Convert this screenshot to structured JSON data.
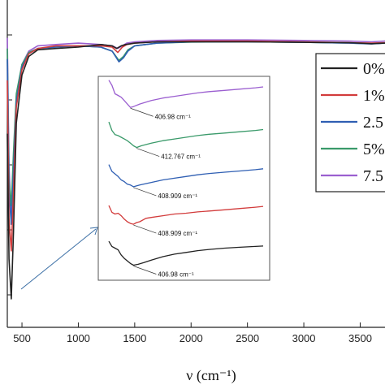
{
  "chart_data": {
    "type": "line",
    "xlabel": "ν (cm⁻¹)",
    "ylabel": "",
    "xlim": [
      370,
      3720
    ],
    "ylim": [
      0,
      100
    ],
    "x_ticks": [
      "500",
      "1000",
      "1500",
      "2000",
      "2500",
      "3000",
      "3500"
    ],
    "legend_position": "right",
    "grid": false,
    "series": [
      {
        "name": "0%",
        "color": "#222222",
        "x": [
          370,
          385,
          405,
          425,
          450,
          500,
          560,
          640,
          800,
          1000,
          1200,
          1300,
          1340,
          1380,
          1420,
          1500,
          1700,
          2000,
          2500,
          3000,
          3400,
          3600,
          3720
        ],
        "y": [
          62,
          15,
          0,
          25,
          66,
          84,
          91,
          93.5,
          94,
          94.5,
          95.5,
          95,
          94,
          95,
          95.5,
          96,
          96.5,
          96.5,
          96.5,
          96.3,
          96.2,
          95.8,
          96
        ]
      },
      {
        "name": "1%",
        "color": "#d23c3c",
        "x": [
          370,
          385,
          405,
          425,
          450,
          500,
          560,
          640,
          800,
          1000,
          1200,
          1300,
          1350,
          1390,
          1430,
          1500,
          1700,
          2000,
          2500,
          3000,
          3400,
          3600,
          3720
        ],
        "y": [
          82,
          30,
          18,
          40,
          72,
          86,
          92,
          94,
          95,
          95,
          95,
          94.5,
          92.5,
          94.5,
          95.5,
          96,
          96.5,
          96.8,
          96.8,
          96.5,
          96.2,
          96,
          96.2
        ]
      },
      {
        "name": "2.5",
        "color": "#2f5fb3",
        "x": [
          370,
          385,
          405,
          425,
          450,
          500,
          560,
          640,
          800,
          1000,
          1200,
          1300,
          1360,
          1400,
          1440,
          1500,
          1700,
          2000,
          2500,
          3000,
          3400,
          3600,
          3720
        ],
        "y": [
          90,
          40,
          28,
          48,
          74,
          87,
          92,
          94,
          94.5,
          95,
          94.5,
          93,
          89,
          90.5,
          93,
          95,
          96,
          96.5,
          96.5,
          96.3,
          96,
          95.7,
          96
        ]
      },
      {
        "name": "5%",
        "color": "#3a9a6a",
        "x": [
          370,
          385,
          405,
          425,
          450,
          500,
          560,
          640,
          800,
          1000,
          1200,
          1300,
          1360,
          1400,
          1440,
          1500,
          1700,
          2000,
          2500,
          3000,
          3400,
          3600,
          3720
        ],
        "y": [
          94,
          45,
          35,
          55,
          77,
          88,
          92.5,
          94,
          94.5,
          95,
          94.5,
          93,
          89.5,
          91,
          93.5,
          95,
          96,
          96.4,
          96.5,
          96.3,
          96,
          95.8,
          96
        ]
      },
      {
        "name": "7.5",
        "color": "#9b5fd0",
        "x": [
          370,
          385,
          405,
          425,
          450,
          500,
          560,
          640,
          800,
          1000,
          1200,
          1300,
          1350,
          1390,
          1430,
          1500,
          1700,
          2000,
          2500,
          3000,
          3400,
          3600,
          3720
        ],
        "y": [
          98,
          50,
          30,
          50,
          76,
          88,
          93,
          95,
          95.5,
          96,
          95.5,
          95,
          94,
          95,
          96,
          96.5,
          97,
          97.2,
          97.2,
          97,
          96.8,
          96.5,
          96.8
        ]
      }
    ],
    "inset": {
      "annotations": [
        "406.98 cm⁻¹",
        "412.767 cm⁻¹",
        "408.909 cm⁻¹",
        "408.909 cm⁻¹",
        "406.98 cm⁻¹"
      ],
      "series": [
        {
          "name": "7.5",
          "color": "#9b5fd0",
          "offset": 195,
          "x": [
            0,
            4,
            8,
            12,
            16,
            20,
            24,
            28,
            32,
            40,
            55,
            70,
            85,
            100,
            115,
            130,
            150,
            170,
            190,
            200
          ],
          "y": [
            32,
            26,
            16,
            14,
            12,
            8,
            4,
            0,
            1,
            4,
            8,
            11,
            13,
            15,
            17,
            18.5,
            20,
            21.5,
            23,
            24
          ]
        },
        {
          "name": "5%",
          "color": "#3a9a6a",
          "offset": 148,
          "x": [
            0,
            4,
            8,
            12,
            16,
            20,
            24,
            28,
            32,
            36,
            42,
            55,
            70,
            85,
            100,
            115,
            130,
            150,
            170,
            190,
            200
          ],
          "y": [
            30,
            20,
            15,
            14,
            12,
            10,
            8,
            5,
            2,
            0,
            2,
            5,
            8,
            10,
            12,
            14,
            15.5,
            17,
            18.5,
            20,
            21
          ]
        },
        {
          "name": "2.5",
          "color": "#2f5fb3",
          "offset": 102,
          "x": [
            0,
            4,
            8,
            12,
            16,
            20,
            24,
            28,
            32,
            40,
            55,
            70,
            85,
            100,
            115,
            130,
            150,
            170,
            190,
            200
          ],
          "y": [
            26,
            18,
            15,
            12,
            8,
            6,
            3,
            2,
            0,
            2,
            5,
            8,
            10,
            12,
            14,
            15.5,
            17,
            18.5,
            20,
            21
          ]
        },
        {
          "name": "1%",
          "color": "#d23c3c",
          "offset": 58,
          "x": [
            0,
            4,
            8,
            12,
            16,
            20,
            24,
            28,
            32,
            36,
            40,
            48,
            55,
            70,
            85,
            100,
            115,
            130,
            150,
            170,
            190,
            200
          ],
          "y": [
            22,
            14,
            12,
            13,
            10,
            6,
            3,
            1,
            0,
            2,
            3,
            7,
            8,
            10,
            12,
            13,
            14.5,
            15.5,
            17,
            18.5,
            20,
            21
          ]
        },
        {
          "name": "0%",
          "color": "#222222",
          "offset": 10,
          "x": [
            0,
            4,
            8,
            12,
            16,
            20,
            24,
            28,
            32,
            38,
            45,
            55,
            70,
            85,
            100,
            115,
            130,
            150,
            170,
            190,
            200
          ],
          "y": [
            28,
            22,
            20,
            18,
            12,
            8,
            5,
            2,
            0,
            1,
            3,
            6,
            10,
            13,
            15,
            17,
            18.5,
            20,
            21,
            22,
            22.5
          ]
        }
      ]
    }
  }
}
